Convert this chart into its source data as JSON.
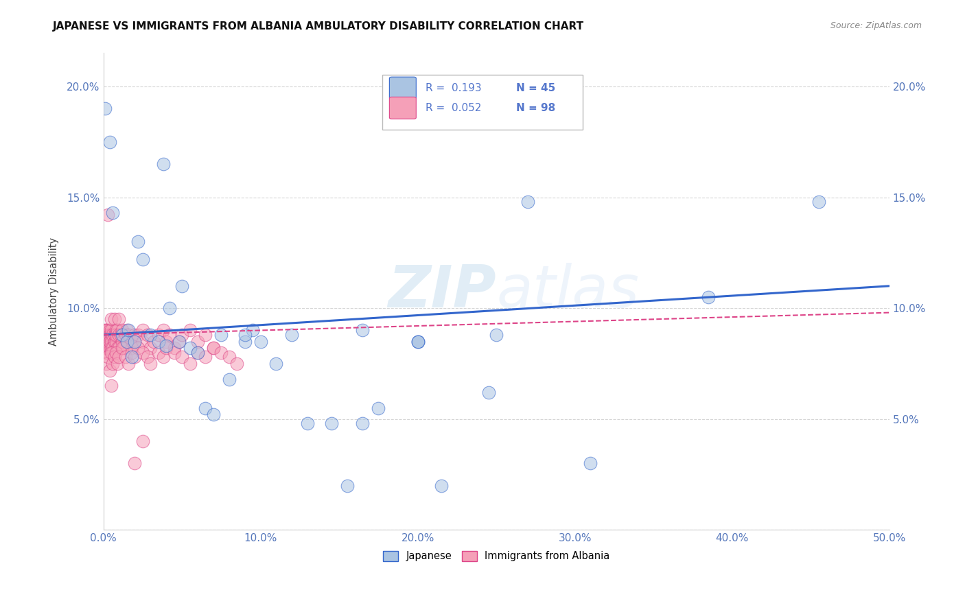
{
  "title": "JAPANESE VS IMMIGRANTS FROM ALBANIA AMBULATORY DISABILITY CORRELATION CHART",
  "source": "Source: ZipAtlas.com",
  "ylabel": "Ambulatory Disability",
  "xlim": [
    0.0,
    0.5
  ],
  "ylim": [
    0.0,
    0.215
  ],
  "xticks": [
    0.0,
    0.1,
    0.2,
    0.3,
    0.4,
    0.5
  ],
  "yticks": [
    0.0,
    0.05,
    0.1,
    0.15,
    0.2
  ],
  "xticklabels": [
    "0.0%",
    "10.0%",
    "20.0%",
    "30.0%",
    "40.0%",
    "50.0%"
  ],
  "yticklabels": [
    "",
    "5.0%",
    "10.0%",
    "15.0%",
    "20.0%"
  ],
  "watermark": "ZIPatlas",
  "legend_r1": "R =  0.193",
  "legend_n1": "N = 45",
  "legend_r2": "R =  0.052",
  "legend_n2": "N = 98",
  "color_japanese": "#aac4e2",
  "color_albania": "#f5a0b8",
  "color_line_japanese": "#3366cc",
  "color_line_albania": "#dd4488",
  "background_color": "#ffffff",
  "japanese_x": [
    0.001,
    0.004,
    0.006,
    0.012,
    0.015,
    0.016,
    0.018,
    0.02,
    0.022,
    0.025,
    0.03,
    0.035,
    0.038,
    0.04,
    0.042,
    0.048,
    0.05,
    0.055,
    0.06,
    0.065,
    0.07,
    0.075,
    0.08,
    0.09,
    0.095,
    0.1,
    0.11,
    0.12,
    0.13,
    0.145,
    0.155,
    0.165,
    0.175,
    0.2,
    0.215,
    0.245,
    0.27,
    0.31,
    0.385,
    0.455,
    0.2,
    0.25,
    0.165,
    0.09,
    0.2
  ],
  "japanese_y": [
    0.19,
    0.175,
    0.143,
    0.088,
    0.085,
    0.09,
    0.078,
    0.085,
    0.13,
    0.122,
    0.088,
    0.085,
    0.165,
    0.083,
    0.1,
    0.085,
    0.11,
    0.082,
    0.08,
    0.055,
    0.052,
    0.088,
    0.068,
    0.085,
    0.09,
    0.085,
    0.075,
    0.088,
    0.048,
    0.048,
    0.02,
    0.048,
    0.055,
    0.085,
    0.02,
    0.062,
    0.148,
    0.03,
    0.105,
    0.148,
    0.085,
    0.088,
    0.09,
    0.088,
    0.085
  ],
  "albania_x": [
    0.001,
    0.001,
    0.001,
    0.002,
    0.002,
    0.002,
    0.002,
    0.002,
    0.003,
    0.003,
    0.003,
    0.003,
    0.004,
    0.004,
    0.004,
    0.004,
    0.005,
    0.005,
    0.005,
    0.005,
    0.005,
    0.006,
    0.006,
    0.006,
    0.007,
    0.007,
    0.007,
    0.008,
    0.008,
    0.008,
    0.009,
    0.009,
    0.01,
    0.01,
    0.01,
    0.011,
    0.012,
    0.012,
    0.013,
    0.014,
    0.015,
    0.015,
    0.016,
    0.018,
    0.018,
    0.02,
    0.02,
    0.022,
    0.025,
    0.025,
    0.028,
    0.03,
    0.032,
    0.035,
    0.038,
    0.04,
    0.042,
    0.045,
    0.048,
    0.05,
    0.055,
    0.06,
    0.065,
    0.07,
    0.002,
    0.003,
    0.004,
    0.005,
    0.006,
    0.007,
    0.008,
    0.009,
    0.01,
    0.012,
    0.014,
    0.016,
    0.018,
    0.02,
    0.022,
    0.025,
    0.028,
    0.03,
    0.035,
    0.038,
    0.04,
    0.045,
    0.05,
    0.055,
    0.06,
    0.065,
    0.07,
    0.075,
    0.08,
    0.085,
    0.02,
    0.025,
    0.003,
    0.005
  ],
  "albania_y": [
    0.088,
    0.082,
    0.09,
    0.085,
    0.08,
    0.09,
    0.088,
    0.082,
    0.088,
    0.082,
    0.08,
    0.09,
    0.09,
    0.088,
    0.082,
    0.085,
    0.088,
    0.085,
    0.082,
    0.09,
    0.095,
    0.088,
    0.082,
    0.08,
    0.085,
    0.095,
    0.088,
    0.09,
    0.085,
    0.088,
    0.082,
    0.09,
    0.088,
    0.095,
    0.082,
    0.088,
    0.085,
    0.09,
    0.082,
    0.088,
    0.085,
    0.09,
    0.088,
    0.082,
    0.085,
    0.088,
    0.085,
    0.088,
    0.09,
    0.085,
    0.088,
    0.082,
    0.085,
    0.088,
    0.09,
    0.085,
    0.088,
    0.082,
    0.085,
    0.088,
    0.09,
    0.085,
    0.088,
    0.082,
    0.075,
    0.078,
    0.072,
    0.08,
    0.075,
    0.078,
    0.08,
    0.075,
    0.078,
    0.082,
    0.078,
    0.075,
    0.08,
    0.078,
    0.082,
    0.08,
    0.078,
    0.075,
    0.08,
    0.078,
    0.082,
    0.08,
    0.078,
    0.075,
    0.08,
    0.078,
    0.082,
    0.08,
    0.078,
    0.075,
    0.03,
    0.04,
    0.142,
    0.065
  ],
  "jp_line_x": [
    0.0,
    0.5
  ],
  "jp_line_y": [
    0.088,
    0.11
  ],
  "al_line_x": [
    0.0,
    0.5
  ],
  "al_line_y": [
    0.088,
    0.098
  ]
}
